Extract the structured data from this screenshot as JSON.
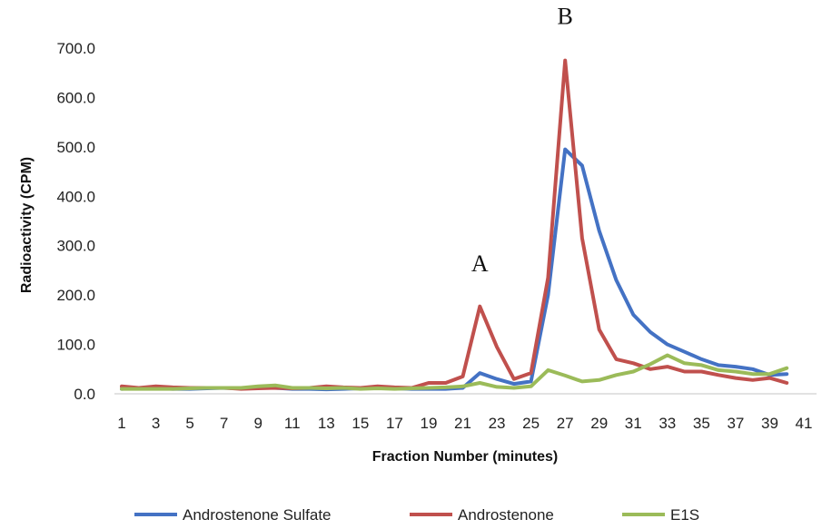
{
  "chart_data": {
    "type": "line",
    "xlabel": "Fraction Number (minutes)",
    "ylabel": "Radioactivity (CPM)",
    "ylim": [
      0,
      700
    ],
    "xlim": [
      1,
      41
    ],
    "y_ticks": [
      "0.0",
      "100.0",
      "200.0",
      "300.0",
      "400.0",
      "500.0",
      "600.0",
      "700.0"
    ],
    "x_ticks": [
      "1",
      "3",
      "5",
      "7",
      "9",
      "11",
      "13",
      "15",
      "17",
      "19",
      "21",
      "23",
      "25",
      "27",
      "29",
      "31",
      "33",
      "35",
      "37",
      "39",
      "41"
    ],
    "grid": false,
    "legend_position": "bottom",
    "annotations": [
      {
        "text": "A",
        "x": 22,
        "y": 265
      },
      {
        "text": "B",
        "x": 27,
        "y": 765
      }
    ],
    "x": [
      1,
      2,
      3,
      4,
      5,
      6,
      7,
      8,
      9,
      10,
      11,
      12,
      13,
      14,
      15,
      16,
      17,
      18,
      19,
      20,
      21,
      22,
      23,
      24,
      25,
      26,
      27,
      28,
      29,
      30,
      31,
      32,
      33,
      34,
      35,
      36,
      37,
      38,
      39,
      40
    ],
    "series": [
      {
        "name": "Androstenone Sulfate",
        "color": "#4472C4",
        "values": [
          10,
          12,
          11,
          10,
          10,
          11,
          12,
          11,
          12,
          12,
          10,
          10,
          9,
          10,
          11,
          12,
          11,
          10,
          10,
          10,
          12,
          42,
          30,
          20,
          25,
          200,
          495,
          462,
          330,
          230,
          160,
          125,
          100,
          85,
          70,
          58,
          55,
          50,
          38,
          40
        ]
      },
      {
        "name": "Androstenone",
        "color": "#C0504D",
        "values": [
          15,
          12,
          15,
          13,
          12,
          12,
          12,
          10,
          11,
          12,
          11,
          12,
          15,
          13,
          12,
          15,
          13,
          12,
          22,
          22,
          35,
          177,
          95,
          30,
          42,
          235,
          675,
          315,
          130,
          70,
          62,
          50,
          55,
          45,
          45,
          38,
          32,
          28,
          32,
          22
        ]
      },
      {
        "name": "E1S",
        "color": "#9BBB59",
        "values": [
          10,
          10,
          10,
          10,
          11,
          12,
          12,
          12,
          15,
          17,
          12,
          12,
          11,
          12,
          10,
          11,
          10,
          11,
          12,
          13,
          15,
          22,
          14,
          12,
          15,
          48,
          37,
          25,
          28,
          38,
          45,
          60,
          78,
          62,
          58,
          48,
          45,
          40,
          40,
          52
        ]
      }
    ]
  }
}
